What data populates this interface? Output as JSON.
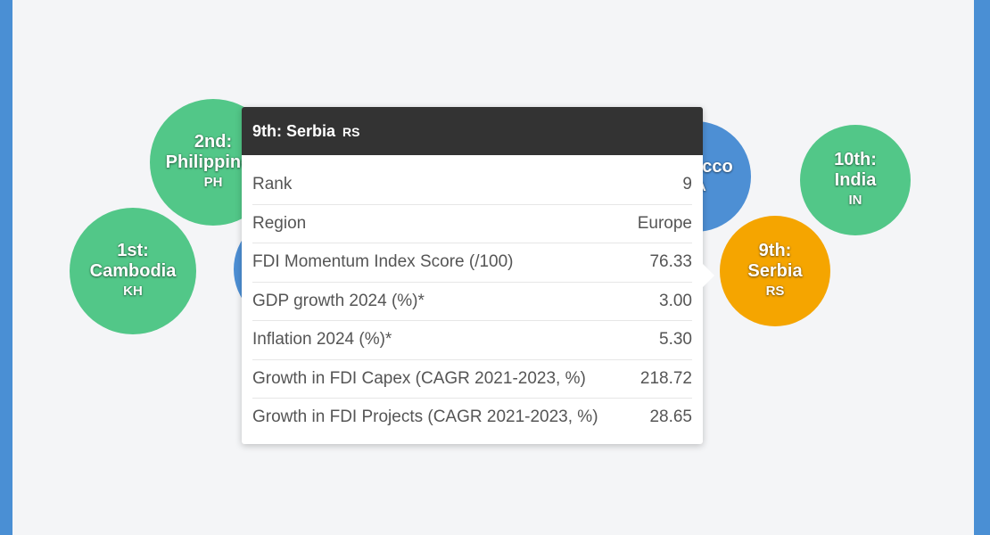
{
  "chart_data": {
    "type": "bubble",
    "nodes": [
      {
        "rank": "1st:",
        "name": "Cambodia",
        "code": "KH",
        "color": "#52c788"
      },
      {
        "rank": "2nd:",
        "name": "Philippines",
        "code": "PH",
        "color": "#52c788"
      },
      {
        "rank": "",
        "name": "",
        "code": "",
        "color": "#4d8fd4"
      },
      {
        "rank": "",
        "name": "Morocco",
        "code": "MA",
        "color": "#4d8fd4"
      },
      {
        "rank": "9th:",
        "name": "Serbia",
        "code": "RS",
        "color": "#f5a500"
      },
      {
        "rank": "10th:",
        "name": "India",
        "code": "IN",
        "color": "#52c788"
      }
    ]
  },
  "tooltip": {
    "title": "9th: Serbia",
    "code": "RS",
    "rows": [
      {
        "label": "Rank",
        "value": "9"
      },
      {
        "label": "Region",
        "value": "Europe"
      },
      {
        "label": "FDI Momentum Index Score (/100)",
        "value": "76.33"
      },
      {
        "label": "GDP growth 2024 (%)*",
        "value": "3.00"
      },
      {
        "label": "Inflation 2024 (%)*",
        "value": "5.30"
      },
      {
        "label": "Growth in FDI Capex (CAGR 2021-2023, %)",
        "value": "218.72"
      },
      {
        "label": "Growth in FDI Projects (CAGR 2021-2023, %)",
        "value": "28.65"
      }
    ]
  }
}
